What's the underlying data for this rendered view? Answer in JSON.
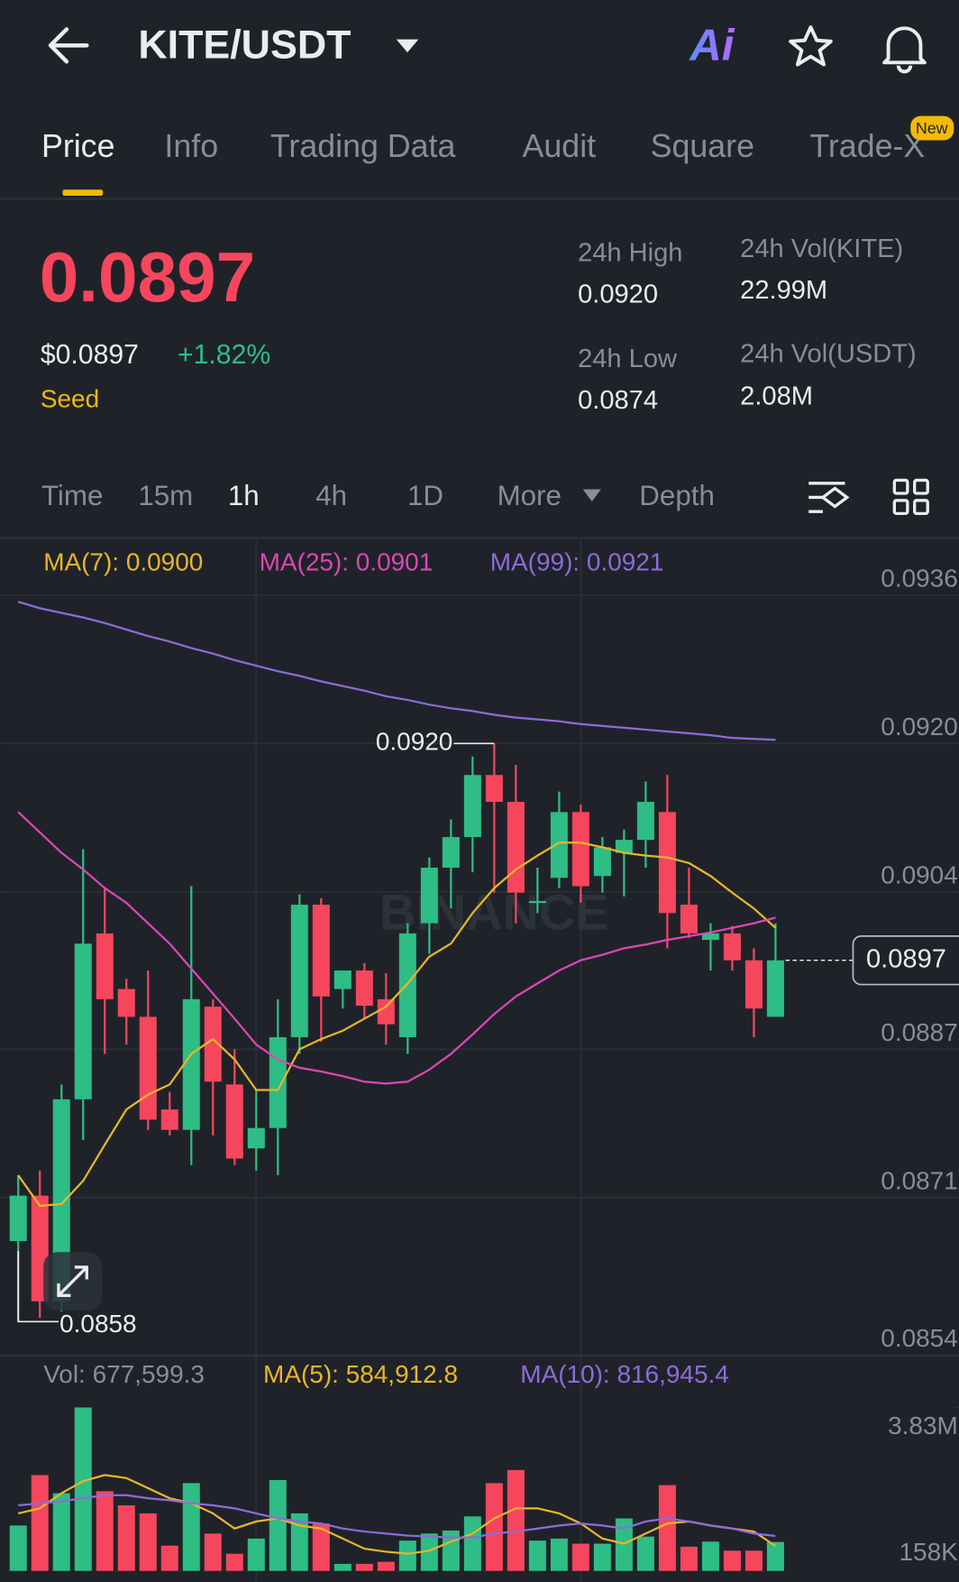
{
  "header": {
    "title": "KITE/USDT",
    "ai_label": "Ai"
  },
  "tabs": [
    "Price",
    "Info",
    "Trading Data",
    "Audit",
    "Square",
    "Trade-X"
  ],
  "tab_badge": "New",
  "price": {
    "last": "0.0897",
    "usd": "$0.0897",
    "change": "+1.82%",
    "tag": "Seed"
  },
  "stats": [
    {
      "label": "24h High",
      "value": "0.0920"
    },
    {
      "label": "24h Low",
      "value": "0.0874"
    },
    {
      "label": "24h Vol(KITE)",
      "value": "22.99M"
    },
    {
      "label": "24h Vol(USDT)",
      "value": "2.08M"
    }
  ],
  "intervals": [
    "Time",
    "15m",
    "1h",
    "4h",
    "1D",
    "More",
    "Depth"
  ],
  "chart_data": {
    "type": "candlestick",
    "watermark": "BINANCE",
    "up_color": "#2ebd85",
    "down_color": "#f6465d",
    "open": [
      0.08663,
      0.08712,
      0.08598,
      0.08816,
      0.08995,
      0.08935,
      0.08905,
      0.08805,
      0.08783,
      0.08916,
      0.08832,
      0.08763,
      0.08785,
      0.08883,
      0.09026,
      0.08935,
      0.08955,
      0.08924,
      0.08883,
      0.09006,
      0.09066,
      0.09099,
      0.09166,
      0.09137,
      0.09028,
      0.09055,
      0.09126,
      0.09057,
      0.09082,
      0.09096,
      0.09126,
      0.09026,
      0.08988,
      0.08995,
      0.08966,
      0.08905
    ],
    "high": [
      0.08734,
      0.08739,
      0.08832,
      0.09086,
      0.09044,
      0.08946,
      0.08955,
      0.08824,
      0.09046,
      0.08924,
      0.0887,
      0.08826,
      0.08924,
      0.09037,
      0.09033,
      0.08955,
      0.08963,
      0.08952,
      0.09006,
      0.09077,
      0.09118,
      0.09186,
      0.092,
      0.09177,
      0.09066,
      0.09148,
      0.09134,
      0.09099,
      0.09107,
      0.09159,
      0.09166,
      0.09066,
      0.09006,
      0.09003,
      0.08979,
      0.09006
    ],
    "low": [
      0.08576,
      0.0858,
      0.08587,
      0.08772,
      0.08865,
      0.08875,
      0.08783,
      0.08777,
      0.08745,
      0.08777,
      0.08745,
      0.08739,
      0.08734,
      0.08865,
      0.08878,
      0.08914,
      0.08903,
      0.08875,
      0.08865,
      0.08973,
      0.09022,
      0.09061,
      0.09039,
      0.09006,
      0.09017,
      0.09044,
      0.09028,
      0.09039,
      0.09035,
      0.09066,
      0.08979,
      0.0899,
      0.08955,
      0.08955,
      0.08883,
      0.08905
    ],
    "close": [
      0.08712,
      0.08598,
      0.08816,
      0.08984,
      0.08924,
      0.08905,
      0.08794,
      0.08783,
      0.08924,
      0.08835,
      0.08752,
      0.08785,
      0.08883,
      0.09026,
      0.08927,
      0.08955,
      0.08917,
      0.08897,
      0.08995,
      0.09066,
      0.09099,
      0.09166,
      0.09137,
      0.09039,
      0.0903,
      0.09126,
      0.09046,
      0.09088,
      0.09096,
      0.09137,
      0.09017,
      0.08995,
      0.08995,
      0.08966,
      0.08914,
      0.08966
    ],
    "series": [
      {
        "name": "MA(7)",
        "color": "#e9b52a",
        "values": [
          0.08734,
          0.08701,
          0.08703,
          0.08728,
          0.08767,
          0.08805,
          0.08821,
          0.08832,
          0.08865,
          0.08881,
          0.08859,
          0.08826,
          0.08826,
          0.0887,
          0.08881,
          0.0889,
          0.08903,
          0.08916,
          0.08941,
          0.0897,
          0.08984,
          0.09017,
          0.09044,
          0.09064,
          0.09079,
          0.09093,
          0.09093,
          0.09088,
          0.09082,
          0.09079,
          0.09077,
          0.09071,
          0.09057,
          0.09039,
          0.09022,
          0.09001
        ]
      },
      {
        "name": "MA(25)",
        "color": "#dc47b3",
        "values": [
          0.09126,
          0.09104,
          0.09082,
          0.09064,
          0.09044,
          0.09028,
          0.09006,
          0.08984,
          0.08957,
          0.0893,
          0.08903,
          0.08875,
          0.08859,
          0.0885,
          0.08846,
          0.08841,
          0.08835,
          0.08833,
          0.08835,
          0.08848,
          0.08865,
          0.08886,
          0.08908,
          0.08927,
          0.08941,
          0.08955,
          0.08966,
          0.08972,
          0.08979,
          0.08983,
          0.08988,
          0.08992,
          0.08996,
          0.09001,
          0.09006,
          0.09012
        ]
      },
      {
        "name": "MA(99)",
        "color": "#8e6bd8",
        "values": [
          0.09353,
          0.09346,
          0.09341,
          0.09336,
          0.0933,
          0.09323,
          0.09316,
          0.0931,
          0.09303,
          0.09297,
          0.0929,
          0.09284,
          0.09278,
          0.09273,
          0.09267,
          0.09262,
          0.09257,
          0.09251,
          0.09247,
          0.09242,
          0.09238,
          0.09235,
          0.09231,
          0.09228,
          0.09226,
          0.09224,
          0.09221,
          0.09219,
          0.09217,
          0.09215,
          0.09213,
          0.09211,
          0.09209,
          0.09206,
          0.09205,
          0.09204
        ]
      }
    ],
    "ma_legend": [
      "MA(7): 0.0900",
      "MA(25): 0.0901",
      "MA(99): 0.0921"
    ],
    "ylim": [
      0.0854,
      0.0936
    ],
    "yticks": [
      0.0936,
      0.092,
      0.0904,
      0.0887,
      0.0871,
      0.0854
    ],
    "ytick_labels": [
      "0.0936",
      "0.0920",
      "0.0904",
      "0.0887",
      "0.0871",
      "0.0854"
    ],
    "high_label": "0.0920",
    "low_label": "0.0858",
    "last_price_label": "0.0897",
    "volume": {
      "values": [
        1064000,
        2246000,
        1820000,
        3830000,
        1868000,
        1537000,
        1348000,
        591000,
        2057000,
        875000,
        402000,
        757000,
        2128000,
        1348000,
        1111000,
        165000,
        165000,
        213000,
        709000,
        875000,
        946000,
        1277000,
        2057000,
        2364000,
        709000,
        757000,
        638000,
        638000,
        1229000,
        804000,
        2010000,
        567000,
        686000,
        473000,
        473000,
        677599.3
      ],
      "series": [
        {
          "name": "MA(5)",
          "color": "#e9b52a",
          "values": [
            1348000,
            1466000,
            1820000,
            2104000,
            2246000,
            2175000,
            1939000,
            1702000,
            1584000,
            1348000,
            993000,
            1158000,
            1229000,
            1064000,
            993000,
            757000,
            520000,
            449000,
            402000,
            473000,
            686000,
            875000,
            1229000,
            1466000,
            1466000,
            1348000,
            1111000,
            757000,
            638000,
            875000,
            1111000,
            1158000,
            1064000,
            993000,
            922000,
            584912.8
          ]
        },
        {
          "name": "MA(10)",
          "color": "#8e6bd8",
          "values": [
            1537000,
            1584000,
            1631000,
            1702000,
            1773000,
            1773000,
            1702000,
            1655000,
            1584000,
            1537000,
            1466000,
            1348000,
            1229000,
            1158000,
            1111000,
            993000,
            922000,
            875000,
            827000,
            804000,
            780000,
            780000,
            875000,
            922000,
            993000,
            1064000,
            1111000,
            1064000,
            993000,
            1158000,
            1229000,
            1158000,
            1064000,
            993000,
            875000,
            816945.4
          ]
        }
      ],
      "legend": [
        "Vol: 677,599.3",
        "MA(5): 584,912.8",
        "MA(10): 816,945.4"
      ],
      "y2lim": [
        0,
        3830000
      ],
      "y2ticks": [
        {
          "value": 3830000,
          "label": "3.83M"
        },
        {
          "value": 158000,
          "label": "158K"
        }
      ]
    }
  }
}
